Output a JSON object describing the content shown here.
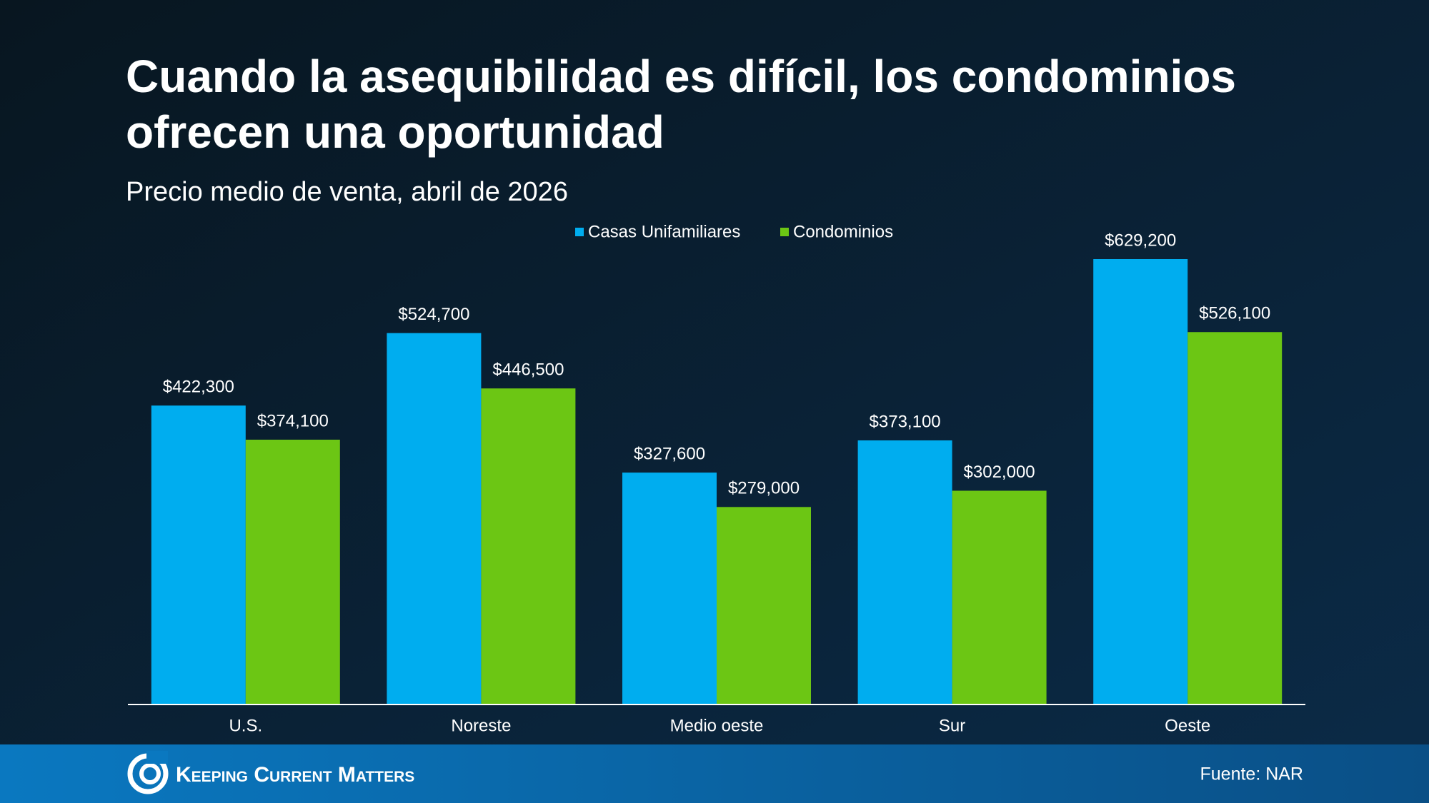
{
  "chart_data": {
    "type": "bar",
    "title_lines": [
      "Cuando la asequibilidad es difícil, los condominios",
      "ofrecen una oportunidad"
    ],
    "subtitle": "Precio medio de venta, abril de 2026",
    "categories": [
      "U.S.",
      "Noreste",
      "Medio oeste",
      "Sur",
      "Oeste"
    ],
    "series": [
      {
        "name": "Casas Unifamiliares",
        "color": "#00adef",
        "values": [
          422300,
          524700,
          327600,
          373100,
          629200
        ],
        "value_labels": [
          "$422,300",
          "$524,700",
          "$327,600",
          "$373,100",
          "$629,200"
        ]
      },
      {
        "name": "Condominios",
        "color": "#6cc614",
        "values": [
          374100,
          446500,
          279000,
          302000,
          526100
        ],
        "value_labels": [
          "$374,100",
          "$446,500",
          "$279,000",
          "$302,000",
          "$526,100"
        ]
      }
    ],
    "legend": "top",
    "brand": "Keeping Current Matters",
    "source": "Fuente: NAR"
  }
}
